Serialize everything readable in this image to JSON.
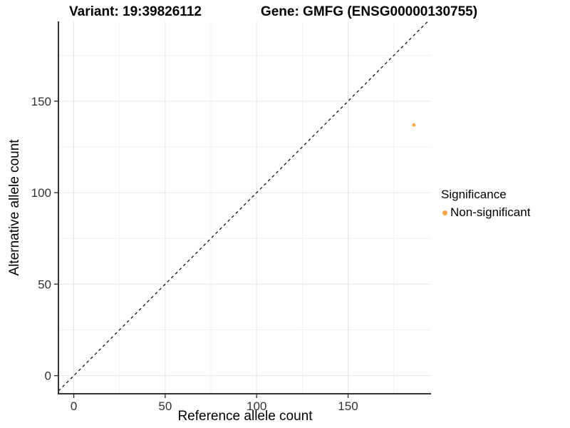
{
  "chart_data": {
    "type": "scatter",
    "titles": {
      "variant": "Variant: 19:39826112",
      "gene": "Gene: GMFG (ENSG00000130755)"
    },
    "xlabel": "Reference allele count",
    "ylabel": "Alternative allele count",
    "xlim": [
      -8.4,
      195.4
    ],
    "ylim": [
      -9.9,
      193.6
    ],
    "x_ticks": [
      0,
      50,
      100,
      150
    ],
    "y_ticks": [
      0,
      50,
      100,
      150
    ],
    "x_minor_ticks": [
      25,
      75,
      125,
      175
    ],
    "y_minor_ticks": [
      25,
      75,
      125,
      175
    ],
    "grid": true,
    "legend": {
      "position": "right",
      "title": "Significance",
      "items": [
        {
          "label": "Non-significant",
          "color": "#F9A242"
        }
      ]
    },
    "reference_line": {
      "kind": "identity y=x",
      "style": "dashed",
      "color": "#000000"
    },
    "series": [
      {
        "name": "Non-significant",
        "color": "#F9A242",
        "point_radius": 2.4,
        "points": [
          {
            "x": 186,
            "y": 137
          }
        ]
      }
    ],
    "colors": {
      "grid_major": "#E5E5E5",
      "grid_minor": "#F0F0F0",
      "axis_line": "#333333",
      "tick_label": "#333333",
      "background": "#FFFFFF"
    }
  }
}
